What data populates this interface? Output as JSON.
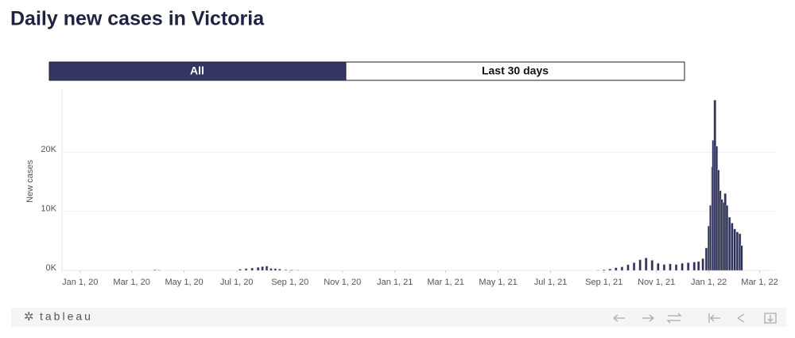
{
  "title": "Daily new cases in Victoria",
  "buttons": [
    "All",
    "Last 30 days"
  ],
  "footer": {
    "logo": "tableau"
  },
  "chart_data": {
    "type": "bar",
    "y_label": "New cases",
    "color": "#2b2d5c",
    "xlim": [
      "2019-12-11",
      "2022-03-19"
    ],
    "xticks": [
      {
        "value": "2020-01-01",
        "label": "Jan 1, 20"
      },
      {
        "value": "2020-03-01",
        "label": "Mar 1, 20"
      },
      {
        "value": "2020-05-01",
        "label": "May 1, 20"
      },
      {
        "value": "2020-07-01",
        "label": "Jul 1, 20"
      },
      {
        "value": "2020-09-01",
        "label": "Sep 1, 20"
      },
      {
        "value": "2020-11-01",
        "label": "Nov 1, 20"
      },
      {
        "value": "2021-01-01",
        "label": "Jan 1, 21"
      },
      {
        "value": "2021-03-01",
        "label": "Mar 1, 21"
      },
      {
        "value": "2021-05-01",
        "label": "May 1, 21"
      },
      {
        "value": "2021-07-01",
        "label": "Jul 1, 21"
      },
      {
        "value": "2021-09-01",
        "label": "Sep 1, 21"
      },
      {
        "value": "2021-11-01",
        "label": "Nov 1, 21"
      },
      {
        "value": "2022-01-01",
        "label": "Jan 1, 22"
      },
      {
        "value": "2022-03-01",
        "label": "Mar 1, 22"
      }
    ],
    "ylim": [
      0,
      30000
    ],
    "yticks": [
      {
        "value": 0,
        "label": "0K"
      },
      {
        "value": 10000,
        "label": "10K"
      },
      {
        "value": 20000,
        "label": "20K"
      }
    ],
    "grid": true,
    "x": [
      "2020-03-28",
      "2020-04-02",
      "2020-07-05",
      "2020-07-12",
      "2020-07-19",
      "2020-07-26",
      "2020-07-31",
      "2020-08-05",
      "2020-08-10",
      "2020-08-15",
      "2020-08-20",
      "2020-08-27",
      "2020-09-03",
      "2020-09-10",
      "2021-08-25",
      "2021-09-01",
      "2021-09-08",
      "2021-09-15",
      "2021-09-22",
      "2021-09-29",
      "2021-10-06",
      "2021-10-13",
      "2021-10-20",
      "2021-10-27",
      "2021-11-03",
      "2021-11-10",
      "2021-11-17",
      "2021-11-24",
      "2021-12-01",
      "2021-12-08",
      "2021-12-15",
      "2021-12-20",
      "2021-12-25",
      "2021-12-29",
      "2022-01-01",
      "2022-01-03",
      "2022-01-05",
      "2022-01-06",
      "2022-01-08",
      "2022-01-10",
      "2022-01-12",
      "2022-01-14",
      "2022-01-16",
      "2022-01-18",
      "2022-01-20",
      "2022-01-22",
      "2022-01-25",
      "2022-01-28",
      "2022-01-31",
      "2022-02-03",
      "2022-02-06",
      "2022-02-08"
    ],
    "values": [
      110,
      60,
      200,
      300,
      400,
      500,
      627,
      725,
      330,
      300,
      220,
      110,
      90,
      50,
      60,
      120,
      250,
      450,
      600,
      950,
      1300,
      1800,
      2100,
      1700,
      1200,
      1000,
      1100,
      1000,
      1200,
      1300,
      1400,
      1500,
      2000,
      3800,
      7500,
      11000,
      17500,
      22000,
      28800,
      21000,
      17000,
      13500,
      12000,
      11500,
      13000,
      11000,
      9000,
      8000,
      7000,
      6500,
      6200,
      4200
    ]
  }
}
